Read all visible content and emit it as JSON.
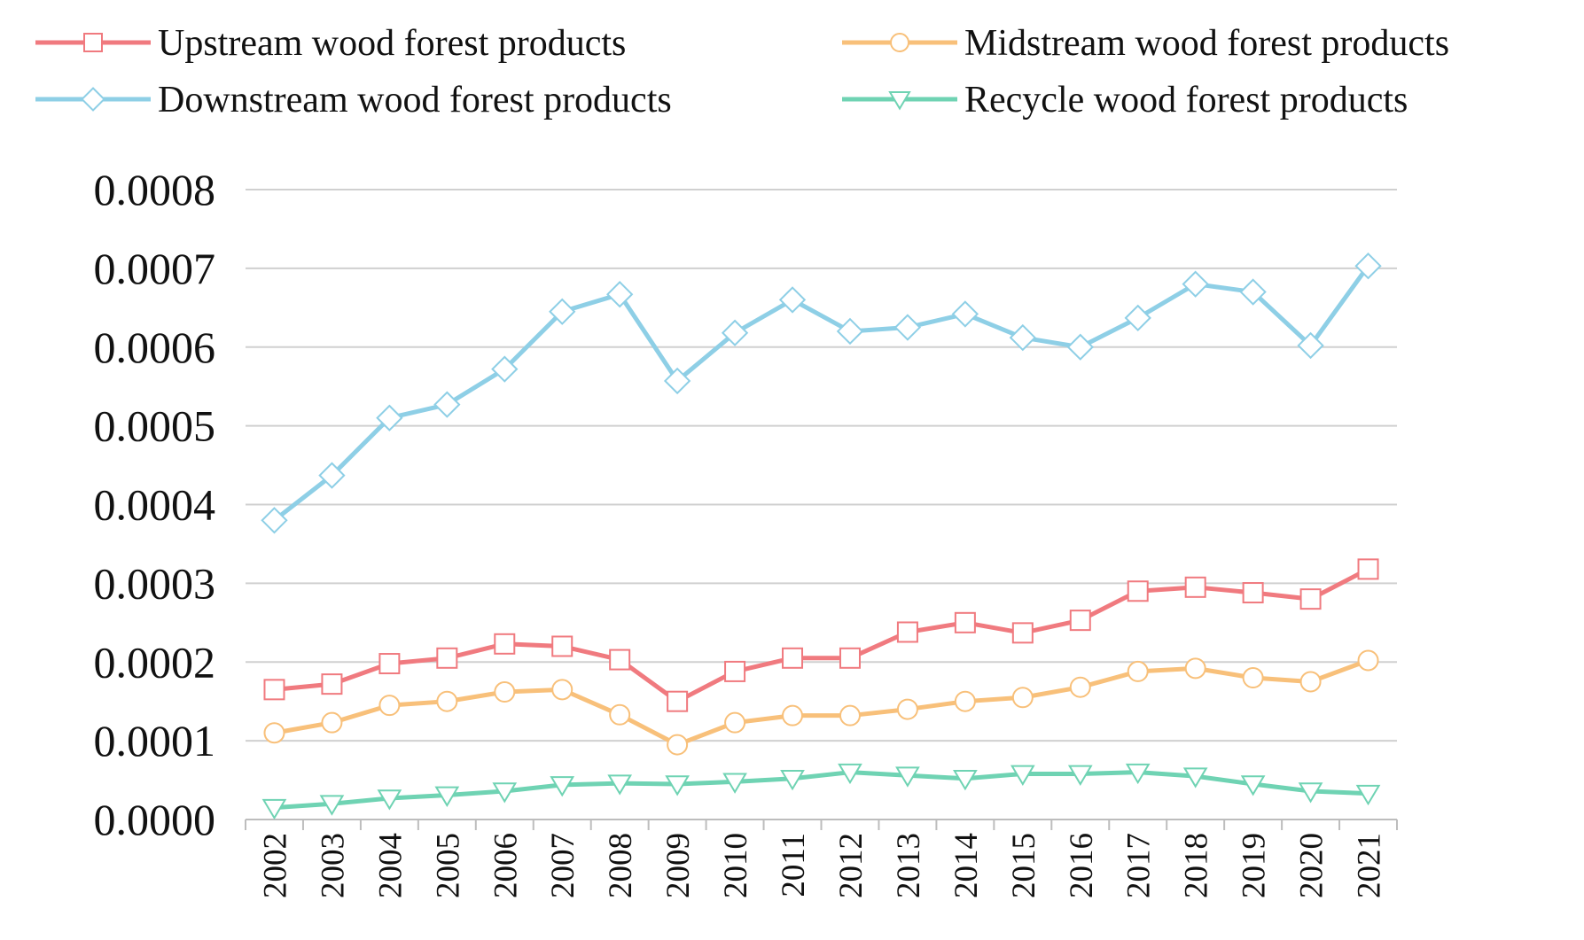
{
  "chart_data": {
    "type": "line",
    "title": "",
    "xlabel": "",
    "ylabel": "",
    "ylim": [
      0.0,
      0.0008
    ],
    "yticks": [
      "0.0000",
      "0.0001",
      "0.0002",
      "0.0003",
      "0.0004",
      "0.0005",
      "0.0006",
      "0.0007",
      "0.0008"
    ],
    "categories": [
      "2002",
      "2003",
      "2004",
      "2005",
      "2006",
      "2007",
      "2008",
      "2009",
      "2010",
      "2011",
      "2012",
      "2013",
      "2014",
      "2015",
      "2016",
      "2017",
      "2018",
      "2019",
      "2020",
      "2021"
    ],
    "legend_position": "top",
    "series": [
      {
        "name": "Upstream wood forest products",
        "color": "#f07a7f",
        "marker": "square",
        "values": [
          0.000165,
          0.000172,
          0.000198,
          0.000205,
          0.000223,
          0.00022,
          0.000203,
          0.00015,
          0.000188,
          0.000205,
          0.000205,
          0.000238,
          0.00025,
          0.000237,
          0.000253,
          0.00029,
          0.000295,
          0.000288,
          0.00028,
          0.000318
        ]
      },
      {
        "name": "Midstream wood forest products",
        "color": "#f8c07a",
        "marker": "circle",
        "values": [
          0.00011,
          0.000123,
          0.000145,
          0.00015,
          0.000162,
          0.000165,
          0.000133,
          9.5e-05,
          0.000123,
          0.000132,
          0.000132,
          0.00014,
          0.00015,
          0.000155,
          0.000168,
          0.000188,
          0.000192,
          0.00018,
          0.000175,
          0.000202
        ]
      },
      {
        "name": "Downstream wood forest products",
        "color": "#8ecfe6",
        "marker": "diamond",
        "values": [
          0.00038,
          0.000437,
          0.00051,
          0.000527,
          0.000572,
          0.000645,
          0.000667,
          0.000557,
          0.000618,
          0.00066,
          0.00062,
          0.000625,
          0.000642,
          0.000612,
          0.0006,
          0.000637,
          0.00068,
          0.00067,
          0.000602,
          0.000703
        ]
      },
      {
        "name": "Recycle wood forest products",
        "color": "#6fd3b3",
        "marker": "triangle-down",
        "values": [
          1.5e-05,
          2e-05,
          2.7e-05,
          3.1e-05,
          3.6e-05,
          4.4e-05,
          4.6e-05,
          4.5e-05,
          4.8e-05,
          5.2e-05,
          6e-05,
          5.6e-05,
          5.2e-05,
          5.8e-05,
          5.8e-05,
          6e-05,
          5.5e-05,
          4.5e-05,
          3.6e-05,
          3.3e-05
        ]
      }
    ]
  }
}
